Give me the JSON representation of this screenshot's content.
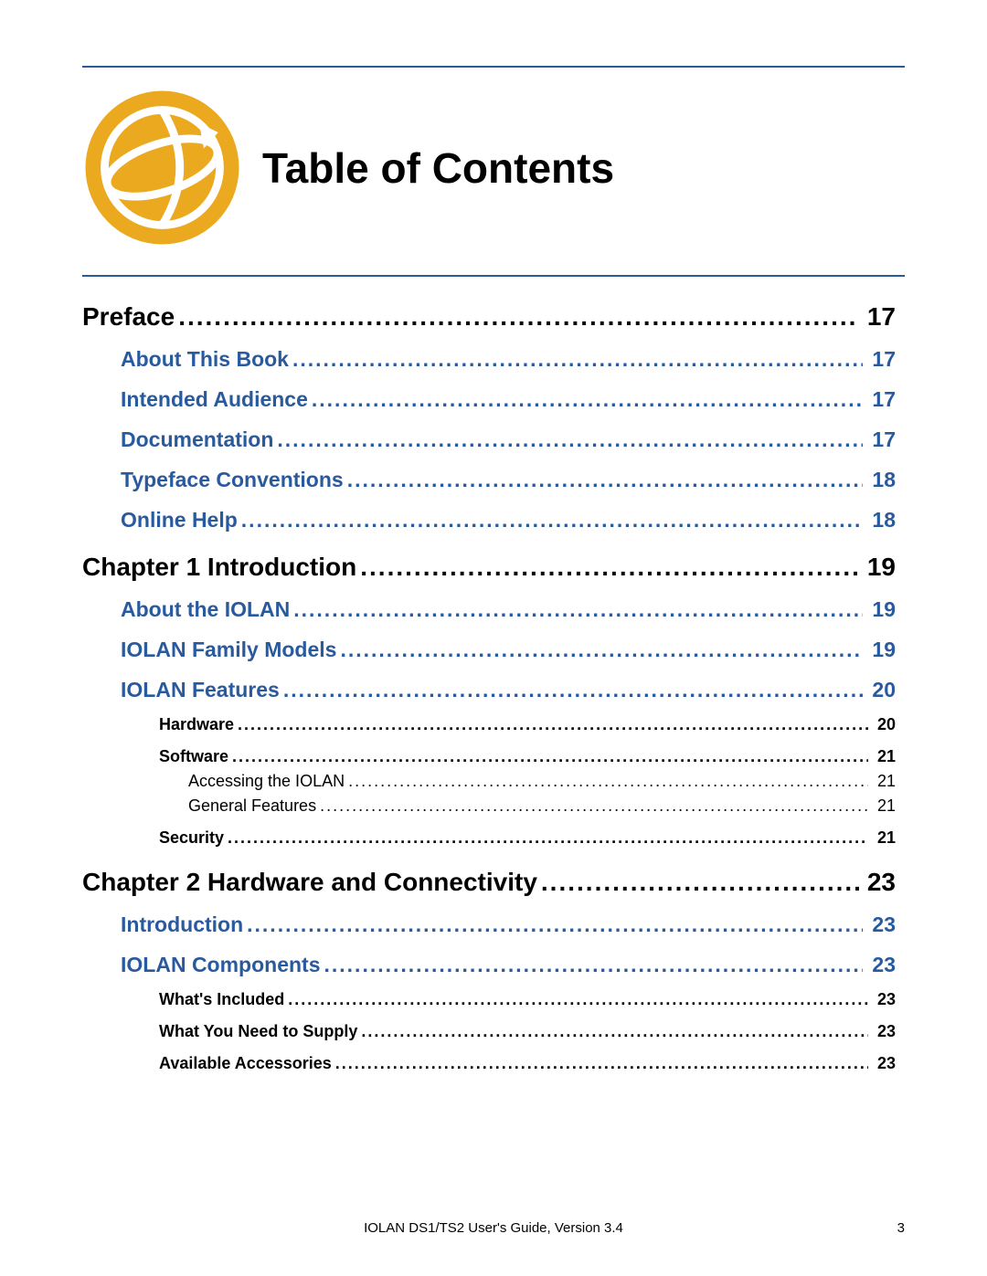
{
  "title": "Table of Contents",
  "colors": {
    "rule": "#2a5a9e",
    "link": "#2a5a9e",
    "logo": "#eba91f",
    "text": "#000000",
    "background": "#ffffff"
  },
  "typography": {
    "title_fontsize": 46,
    "lvl1_fontsize": 28,
    "lvl2_fontsize": 23,
    "lvl3_fontsize": 18,
    "lvl4_fontsize": 18,
    "footer_fontsize": 15
  },
  "toc": [
    {
      "level": 1,
      "label": "Preface",
      "page": "17"
    },
    {
      "level": 2,
      "label": "About This Book",
      "page": "17"
    },
    {
      "level": 2,
      "label": "Intended Audience",
      "page": "17"
    },
    {
      "level": 2,
      "label": "Documentation",
      "page": "17"
    },
    {
      "level": 2,
      "label": "Typeface Conventions",
      "page": "18"
    },
    {
      "level": 2,
      "label": "Online Help",
      "page": "18"
    },
    {
      "level": 1,
      "label": "Chapter 1 Introduction",
      "page": "19"
    },
    {
      "level": 2,
      "label": "About the IOLAN",
      "page": "19"
    },
    {
      "level": 2,
      "label": "IOLAN Family Models",
      "page": "19"
    },
    {
      "level": 2,
      "label": "IOLAN Features",
      "page": "20"
    },
    {
      "level": 3,
      "label": "Hardware",
      "page": "20"
    },
    {
      "level": 3,
      "label": "Software",
      "page": "21"
    },
    {
      "level": 4,
      "label": "Accessing the IOLAN",
      "page": "21"
    },
    {
      "level": 4,
      "label": "General Features",
      "page": "21"
    },
    {
      "level": 3,
      "label": "Security",
      "page": "21"
    },
    {
      "level": 1,
      "label": "Chapter 2 Hardware and Connectivity",
      "page": "23"
    },
    {
      "level": 2,
      "label": "Introduction",
      "page": "23"
    },
    {
      "level": 2,
      "label": "IOLAN Components",
      "page": "23"
    },
    {
      "level": 3,
      "label": "What's Included",
      "page": "23"
    },
    {
      "level": 3,
      "label": "What You Need to Supply",
      "page": "23"
    },
    {
      "level": 3,
      "label": "Available Accessories",
      "page": "23"
    }
  ],
  "footer": {
    "text": "IOLAN DS1/TS2 User's Guide, Version 3.4",
    "page_number": "3"
  }
}
